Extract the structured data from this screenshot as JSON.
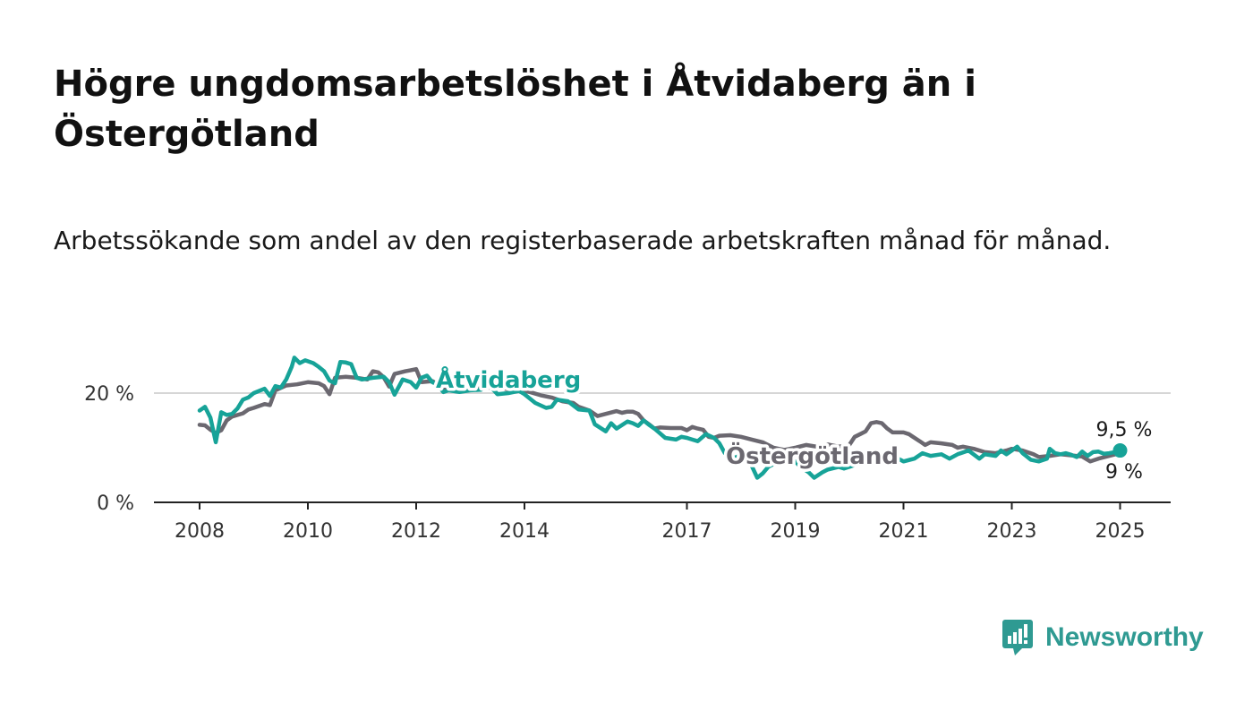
{
  "title": "Högre ungdomsarbetslöshet i Åtvidaberg än i Östergötland",
  "subtitle": "Arbetssökande som andel av den registerbaserade arbetskraften månad för månad.",
  "brand": {
    "name": "Newsworthy",
    "icon": "newsworthy-logo-icon",
    "color": "#2f9a92"
  },
  "chart_data": {
    "type": "line",
    "xlim": [
      2008,
      2025.2
    ],
    "ylim": [
      0,
      30
    ],
    "x_ticks": [
      {
        "value": 2008,
        "label": "2008"
      },
      {
        "value": 2010,
        "label": "2010"
      },
      {
        "value": 2012,
        "label": "2012"
      },
      {
        "value": 2014,
        "label": "2014"
      },
      {
        "value": 2017,
        "label": "2017"
      },
      {
        "value": 2019,
        "label": "2019"
      },
      {
        "value": 2021,
        "label": "2021"
      },
      {
        "value": 2023,
        "label": "2023"
      },
      {
        "value": 2025,
        "label": "2025"
      }
    ],
    "y_ticks": [
      {
        "value": 0,
        "label": "0 %"
      },
      {
        "value": 20,
        "label": "20 %"
      }
    ],
    "grid": true,
    "series": [
      {
        "name": "Åtvidaberg",
        "color": "#17a398",
        "end_label": "9,5 %",
        "points": [
          [
            2008.0,
            16.8
          ],
          [
            2008.1,
            17.5
          ],
          [
            2008.2,
            15.5
          ],
          [
            2008.3,
            11.0
          ],
          [
            2008.4,
            16.5
          ],
          [
            2008.5,
            16.0
          ],
          [
            2008.6,
            16.2
          ],
          [
            2008.7,
            17.2
          ],
          [
            2008.8,
            18.8
          ],
          [
            2008.9,
            19.2
          ],
          [
            2009.0,
            20.0
          ],
          [
            2009.2,
            20.8
          ],
          [
            2009.3,
            19.5
          ],
          [
            2009.4,
            21.3
          ],
          [
            2009.5,
            21.0
          ],
          [
            2009.6,
            22.5
          ],
          [
            2009.7,
            24.8
          ],
          [
            2009.75,
            26.5
          ],
          [
            2009.85,
            25.5
          ],
          [
            2009.95,
            26.0
          ],
          [
            2010.1,
            25.5
          ],
          [
            2010.2,
            24.8
          ],
          [
            2010.3,
            24.0
          ],
          [
            2010.4,
            22.3
          ],
          [
            2010.5,
            21.8
          ],
          [
            2010.6,
            25.7
          ],
          [
            2010.7,
            25.6
          ],
          [
            2010.8,
            25.3
          ],
          [
            2010.9,
            22.8
          ],
          [
            2011.0,
            22.5
          ],
          [
            2011.2,
            22.8
          ],
          [
            2011.4,
            23.0
          ],
          [
            2011.5,
            22.0
          ],
          [
            2011.6,
            19.7
          ],
          [
            2011.75,
            22.5
          ],
          [
            2011.9,
            22.0
          ],
          [
            2012.0,
            21.0
          ],
          [
            2012.1,
            22.8
          ],
          [
            2012.2,
            23.2
          ],
          [
            2012.3,
            22.0
          ],
          [
            2012.4,
            21.5
          ],
          [
            2012.5,
            20.2
          ],
          [
            2012.6,
            20.5
          ],
          [
            2012.8,
            20.2
          ],
          [
            2013.0,
            20.5
          ],
          [
            2013.2,
            20.6
          ],
          [
            2013.3,
            22.0
          ],
          [
            2013.5,
            19.8
          ],
          [
            2013.7,
            20.0
          ],
          [
            2013.9,
            20.4
          ],
          [
            2014.0,
            19.8
          ],
          [
            2014.2,
            18.2
          ],
          [
            2014.4,
            17.3
          ],
          [
            2014.5,
            17.5
          ],
          [
            2014.6,
            18.8
          ],
          [
            2014.8,
            18.5
          ],
          [
            2015.0,
            17.0
          ],
          [
            2015.2,
            16.8
          ],
          [
            2015.3,
            14.3
          ],
          [
            2015.5,
            13.0
          ],
          [
            2015.6,
            14.5
          ],
          [
            2015.7,
            13.5
          ],
          [
            2015.9,
            14.8
          ],
          [
            2016.0,
            14.5
          ],
          [
            2016.1,
            14.0
          ],
          [
            2016.2,
            15.0
          ],
          [
            2016.3,
            14.2
          ],
          [
            2016.4,
            13.5
          ],
          [
            2016.6,
            11.8
          ],
          [
            2016.8,
            11.5
          ],
          [
            2016.9,
            12.0
          ],
          [
            2017.0,
            11.8
          ],
          [
            2017.1,
            11.5
          ],
          [
            2017.2,
            11.2
          ],
          [
            2017.35,
            12.5
          ],
          [
            2017.5,
            11.8
          ],
          [
            2017.6,
            10.8
          ],
          [
            2017.7,
            9.0
          ],
          [
            2017.8,
            8.5
          ],
          [
            2017.9,
            8.2
          ],
          [
            2018.0,
            8.8
          ],
          [
            2018.1,
            8.7
          ],
          [
            2018.2,
            6.6
          ],
          [
            2018.3,
            4.5
          ],
          [
            2018.4,
            5.3
          ],
          [
            2018.5,
            6.5
          ],
          [
            2018.6,
            7.0
          ],
          [
            2018.8,
            8.0
          ],
          [
            2019.0,
            7.5
          ],
          [
            2019.1,
            6.5
          ],
          [
            2019.25,
            5.5
          ],
          [
            2019.35,
            4.5
          ],
          [
            2019.5,
            5.5
          ],
          [
            2019.6,
            6.0
          ],
          [
            2019.8,
            6.5
          ],
          [
            2019.9,
            6.2
          ],
          [
            2020.0,
            6.5
          ],
          [
            2020.2,
            7.2
          ],
          [
            2020.4,
            8.0
          ],
          [
            2020.6,
            9.0
          ],
          [
            2020.8,
            8.5
          ],
          [
            2021.0,
            7.5
          ],
          [
            2021.2,
            8.0
          ],
          [
            2021.35,
            9.0
          ],
          [
            2021.5,
            8.5
          ],
          [
            2021.7,
            8.8
          ],
          [
            2021.85,
            8.0
          ],
          [
            2022.0,
            8.8
          ],
          [
            2022.2,
            9.5
          ],
          [
            2022.4,
            8.0
          ],
          [
            2022.5,
            8.8
          ],
          [
            2022.7,
            8.5
          ],
          [
            2022.8,
            9.5
          ],
          [
            2022.9,
            8.8
          ],
          [
            2023.0,
            9.5
          ],
          [
            2023.1,
            10.2
          ],
          [
            2023.2,
            9.0
          ],
          [
            2023.35,
            7.8
          ],
          [
            2023.5,
            7.5
          ],
          [
            2023.65,
            8.0
          ],
          [
            2023.7,
            9.8
          ],
          [
            2023.8,
            9.0
          ],
          [
            2023.9,
            8.8
          ],
          [
            2024.0,
            9.0
          ],
          [
            2024.1,
            8.7
          ],
          [
            2024.2,
            8.3
          ],
          [
            2024.3,
            9.3
          ],
          [
            2024.4,
            8.5
          ],
          [
            2024.5,
            9.2
          ],
          [
            2024.6,
            9.3
          ],
          [
            2024.7,
            8.9
          ],
          [
            2024.8,
            9.0
          ],
          [
            2024.9,
            9.2
          ],
          [
            2025.0,
            9.5
          ]
        ]
      },
      {
        "name": "Östergötland",
        "color": "#6b6870",
        "end_label": "9 %",
        "points": [
          [
            2008.0,
            14.2
          ],
          [
            2008.1,
            14.1
          ],
          [
            2008.2,
            13.3
          ],
          [
            2008.3,
            12.7
          ],
          [
            2008.4,
            13.2
          ],
          [
            2008.5,
            15.0
          ],
          [
            2008.6,
            15.7
          ],
          [
            2008.8,
            16.3
          ],
          [
            2008.9,
            17.0
          ],
          [
            2009.0,
            17.3
          ],
          [
            2009.2,
            18.0
          ],
          [
            2009.3,
            17.8
          ],
          [
            2009.4,
            20.5
          ],
          [
            2009.6,
            21.4
          ],
          [
            2009.8,
            21.6
          ],
          [
            2010.0,
            22.0
          ],
          [
            2010.2,
            21.8
          ],
          [
            2010.3,
            21.3
          ],
          [
            2010.4,
            19.8
          ],
          [
            2010.5,
            22.8
          ],
          [
            2010.7,
            23.0
          ],
          [
            2010.9,
            22.8
          ],
          [
            2011.1,
            22.5
          ],
          [
            2011.2,
            24.0
          ],
          [
            2011.3,
            23.8
          ],
          [
            2011.4,
            22.9
          ],
          [
            2011.5,
            21.2
          ],
          [
            2011.6,
            23.5
          ],
          [
            2011.8,
            24.0
          ],
          [
            2011.9,
            24.2
          ],
          [
            2012.0,
            24.4
          ],
          [
            2012.1,
            22.0
          ],
          [
            2012.3,
            22.2
          ],
          [
            2012.5,
            21.0
          ],
          [
            2012.7,
            21.0
          ],
          [
            2012.9,
            20.8
          ],
          [
            2013.1,
            20.8
          ],
          [
            2013.3,
            21.0
          ],
          [
            2013.5,
            21.0
          ],
          [
            2013.7,
            20.7
          ],
          [
            2013.9,
            20.6
          ],
          [
            2014.1,
            20.2
          ],
          [
            2014.3,
            19.6
          ],
          [
            2014.5,
            19.2
          ],
          [
            2014.7,
            18.5
          ],
          [
            2014.9,
            18.2
          ],
          [
            2015.0,
            17.5
          ],
          [
            2015.2,
            16.8
          ],
          [
            2015.35,
            15.8
          ],
          [
            2015.5,
            16.2
          ],
          [
            2015.7,
            16.7
          ],
          [
            2015.8,
            16.4
          ],
          [
            2015.9,
            16.6
          ],
          [
            2016.0,
            16.6
          ],
          [
            2016.1,
            16.2
          ],
          [
            2016.2,
            15.0
          ],
          [
            2016.3,
            14.3
          ],
          [
            2016.4,
            13.5
          ],
          [
            2016.5,
            13.7
          ],
          [
            2016.7,
            13.6
          ],
          [
            2016.9,
            13.6
          ],
          [
            2017.0,
            13.2
          ],
          [
            2017.1,
            13.8
          ],
          [
            2017.2,
            13.5
          ],
          [
            2017.3,
            13.3
          ],
          [
            2017.4,
            12.0
          ],
          [
            2017.5,
            11.8
          ],
          [
            2017.6,
            12.2
          ],
          [
            2017.8,
            12.3
          ],
          [
            2018.0,
            12.0
          ],
          [
            2018.2,
            11.5
          ],
          [
            2018.4,
            11.0
          ],
          [
            2018.6,
            10.0
          ],
          [
            2018.8,
            9.6
          ],
          [
            2019.0,
            10.0
          ],
          [
            2019.2,
            10.5
          ],
          [
            2019.4,
            10.2
          ],
          [
            2019.6,
            10.6
          ],
          [
            2019.8,
            10.2
          ],
          [
            2020.0,
            10.5
          ],
          [
            2020.1,
            12.0
          ],
          [
            2020.2,
            12.5
          ],
          [
            2020.3,
            13.0
          ],
          [
            2020.4,
            14.5
          ],
          [
            2020.5,
            14.7
          ],
          [
            2020.6,
            14.5
          ],
          [
            2020.7,
            13.5
          ],
          [
            2020.8,
            12.8
          ],
          [
            2021.0,
            12.8
          ],
          [
            2021.1,
            12.5
          ],
          [
            2021.3,
            11.2
          ],
          [
            2021.4,
            10.5
          ],
          [
            2021.5,
            11.0
          ],
          [
            2021.7,
            10.8
          ],
          [
            2021.9,
            10.5
          ],
          [
            2022.0,
            10.0
          ],
          [
            2022.1,
            10.2
          ],
          [
            2022.3,
            9.8
          ],
          [
            2022.5,
            9.2
          ],
          [
            2022.7,
            9.0
          ],
          [
            2022.9,
            9.5
          ],
          [
            2023.0,
            9.8
          ],
          [
            2023.2,
            9.5
          ],
          [
            2023.4,
            8.8
          ],
          [
            2023.5,
            8.3
          ],
          [
            2023.7,
            8.5
          ],
          [
            2023.9,
            8.8
          ],
          [
            2024.1,
            8.6
          ],
          [
            2024.3,
            8.4
          ],
          [
            2024.45,
            7.5
          ],
          [
            2024.6,
            8.0
          ],
          [
            2024.8,
            8.5
          ],
          [
            2025.0,
            9.0
          ]
        ]
      }
    ]
  }
}
